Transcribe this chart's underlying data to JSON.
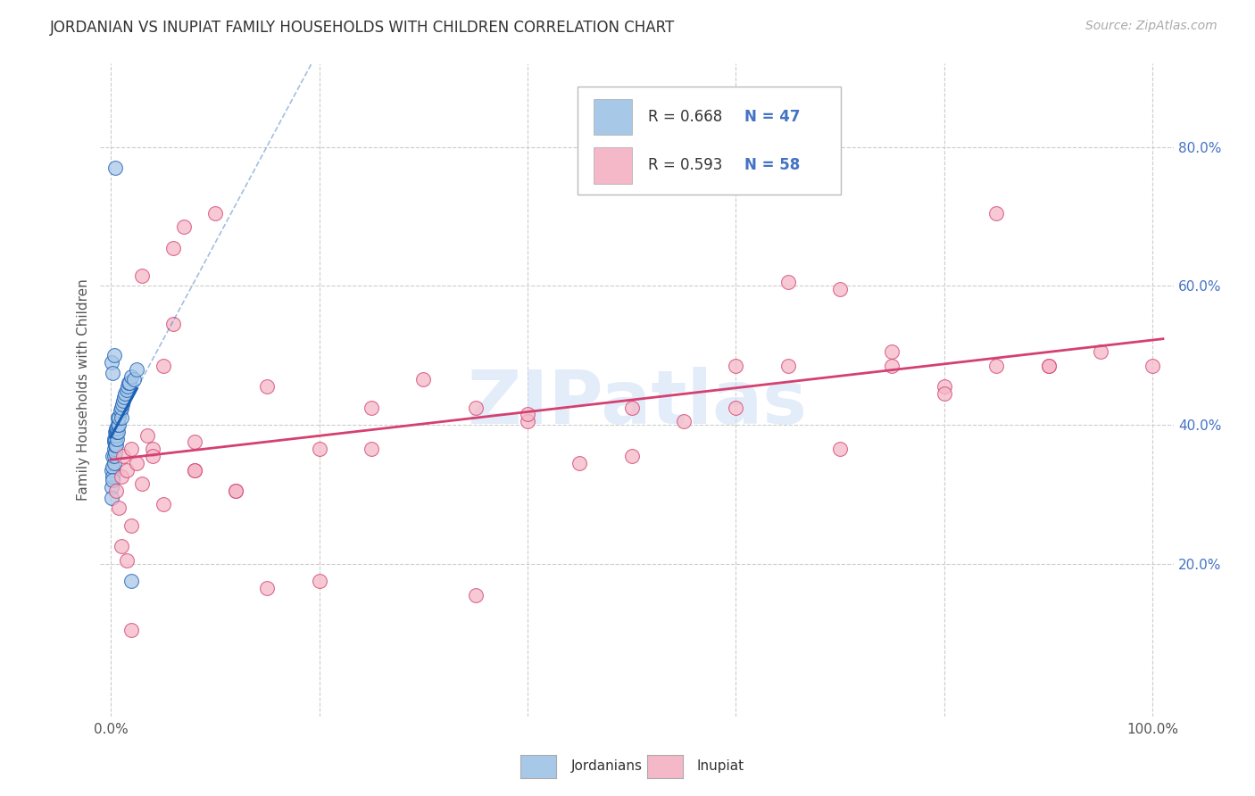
{
  "title": "JORDANIAN VS INUPIAT FAMILY HOUSEHOLDS WITH CHILDREN CORRELATION CHART",
  "source": "Source: ZipAtlas.com",
  "ylabel": "Family Households with Children",
  "watermark": "ZIPatlas",
  "jordanians_color": "#a8c8e8",
  "inupiat_color": "#f4b8c8",
  "jordanians_line_color": "#1a5fb4",
  "inupiat_line_color": "#d44070",
  "background_color": "#ffffff",
  "grid_color": "#cccccc",
  "ytick_color": "#4472c4",
  "ytick_labels": [
    "20.0%",
    "40.0%",
    "60.0%",
    "80.0%"
  ],
  "ytick_values": [
    0.2,
    0.4,
    0.6,
    0.8
  ],
  "xlim": [
    -0.01,
    1.02
  ],
  "ylim": [
    -0.02,
    0.92
  ],
  "legend_R1": "R = 0.668",
  "legend_N1": "N = 47",
  "legend_R2": "R = 0.593",
  "legend_N2": "N = 58",
  "jordanians_x": [
    0.001,
    0.001,
    0.001,
    0.002,
    0.002,
    0.002,
    0.002,
    0.003,
    0.003,
    0.003,
    0.003,
    0.003,
    0.004,
    0.004,
    0.004,
    0.004,
    0.005,
    0.005,
    0.005,
    0.005,
    0.006,
    0.006,
    0.006,
    0.007,
    0.007,
    0.007,
    0.008,
    0.008,
    0.009,
    0.01,
    0.01,
    0.011,
    0.012,
    0.013,
    0.014,
    0.015,
    0.016,
    0.017,
    0.018,
    0.02,
    0.022,
    0.025,
    0.001,
    0.002,
    0.003,
    0.004,
    0.02
  ],
  "jordanians_y": [
    0.335,
    0.31,
    0.295,
    0.325,
    0.34,
    0.355,
    0.32,
    0.345,
    0.355,
    0.365,
    0.375,
    0.38,
    0.36,
    0.37,
    0.38,
    0.39,
    0.37,
    0.385,
    0.39,
    0.395,
    0.38,
    0.39,
    0.395,
    0.39,
    0.4,
    0.41,
    0.4,
    0.41,
    0.42,
    0.41,
    0.425,
    0.43,
    0.435,
    0.44,
    0.445,
    0.45,
    0.455,
    0.46,
    0.46,
    0.47,
    0.465,
    0.48,
    0.49,
    0.475,
    0.5,
    0.77,
    0.175
  ],
  "inupiat_x": [
    0.005,
    0.008,
    0.01,
    0.012,
    0.015,
    0.02,
    0.025,
    0.03,
    0.035,
    0.04,
    0.05,
    0.06,
    0.07,
    0.08,
    0.1,
    0.12,
    0.15,
    0.2,
    0.25,
    0.3,
    0.35,
    0.4,
    0.5,
    0.55,
    0.6,
    0.65,
    0.7,
    0.75,
    0.8,
    0.85,
    0.9,
    0.95,
    1.0,
    0.01,
    0.015,
    0.05,
    0.08,
    0.12,
    0.2,
    0.35,
    0.5,
    0.6,
    0.7,
    0.8,
    0.9,
    0.02,
    0.03,
    0.06,
    0.15,
    0.4,
    0.65,
    0.75,
    0.85,
    0.04,
    0.08,
    0.25,
    0.45,
    0.02
  ],
  "inupiat_y": [
    0.305,
    0.28,
    0.325,
    0.355,
    0.335,
    0.365,
    0.345,
    0.315,
    0.385,
    0.365,
    0.485,
    0.545,
    0.685,
    0.335,
    0.705,
    0.305,
    0.165,
    0.175,
    0.425,
    0.465,
    0.425,
    0.405,
    0.355,
    0.405,
    0.425,
    0.605,
    0.595,
    0.485,
    0.455,
    0.485,
    0.485,
    0.505,
    0.485,
    0.225,
    0.205,
    0.285,
    0.335,
    0.305,
    0.365,
    0.155,
    0.425,
    0.485,
    0.365,
    0.445,
    0.485,
    0.255,
    0.615,
    0.655,
    0.455,
    0.415,
    0.485,
    0.505,
    0.705,
    0.355,
    0.375,
    0.365,
    0.345,
    0.105
  ]
}
